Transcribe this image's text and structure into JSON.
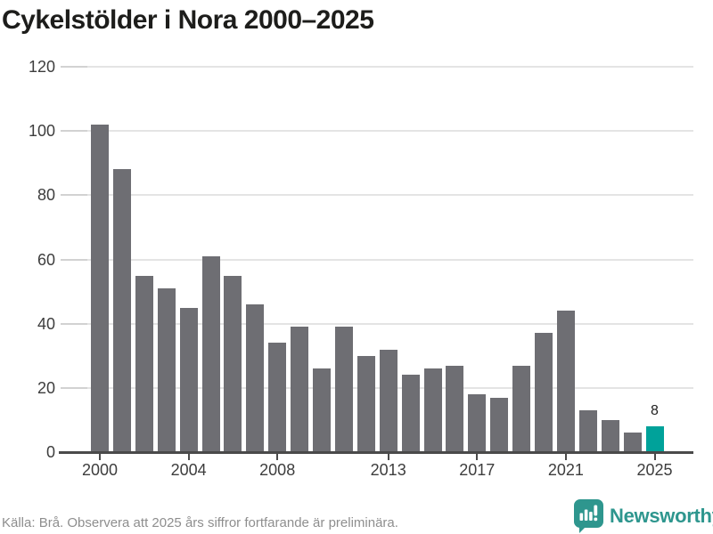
{
  "chart_data": {
    "type": "bar",
    "title": "Cykelstölder i Nora 2000–2025",
    "categories": [
      2000,
      2001,
      2002,
      2003,
      2004,
      2005,
      2006,
      2007,
      2008,
      2009,
      2010,
      2011,
      2012,
      2013,
      2014,
      2015,
      2016,
      2017,
      2018,
      2019,
      2020,
      2021,
      2022,
      2023,
      2024,
      2025
    ],
    "values": [
      102,
      88,
      55,
      51,
      45,
      61,
      55,
      46,
      34,
      39,
      26,
      39,
      30,
      32,
      24,
      26,
      27,
      18,
      17,
      27,
      37,
      44,
      13,
      10,
      6,
      8
    ],
    "highlight_category": 2025,
    "highlight_value_label": "8",
    "ylim": [
      0,
      120
    ],
    "yticks": [
      0,
      20,
      40,
      60,
      80,
      100,
      120
    ],
    "xtick_labels": [
      "2000",
      "2004",
      "2008",
      "2013",
      "2017",
      "2021",
      "2025"
    ],
    "grid": "horizontal",
    "legend": "none",
    "xlabel": "",
    "ylabel": ""
  },
  "colors": {
    "bar": "#6e6e73",
    "highlight_bar": "#00a29a",
    "brand_teal": "#2e968e",
    "axis": "#4a4a4a",
    "gridline": "#e4e4e4"
  },
  "footer": {
    "source": "Källa: Brå. Observera att 2025 års siffror fortfarande är preliminära.",
    "brand": "Newsworthy"
  }
}
